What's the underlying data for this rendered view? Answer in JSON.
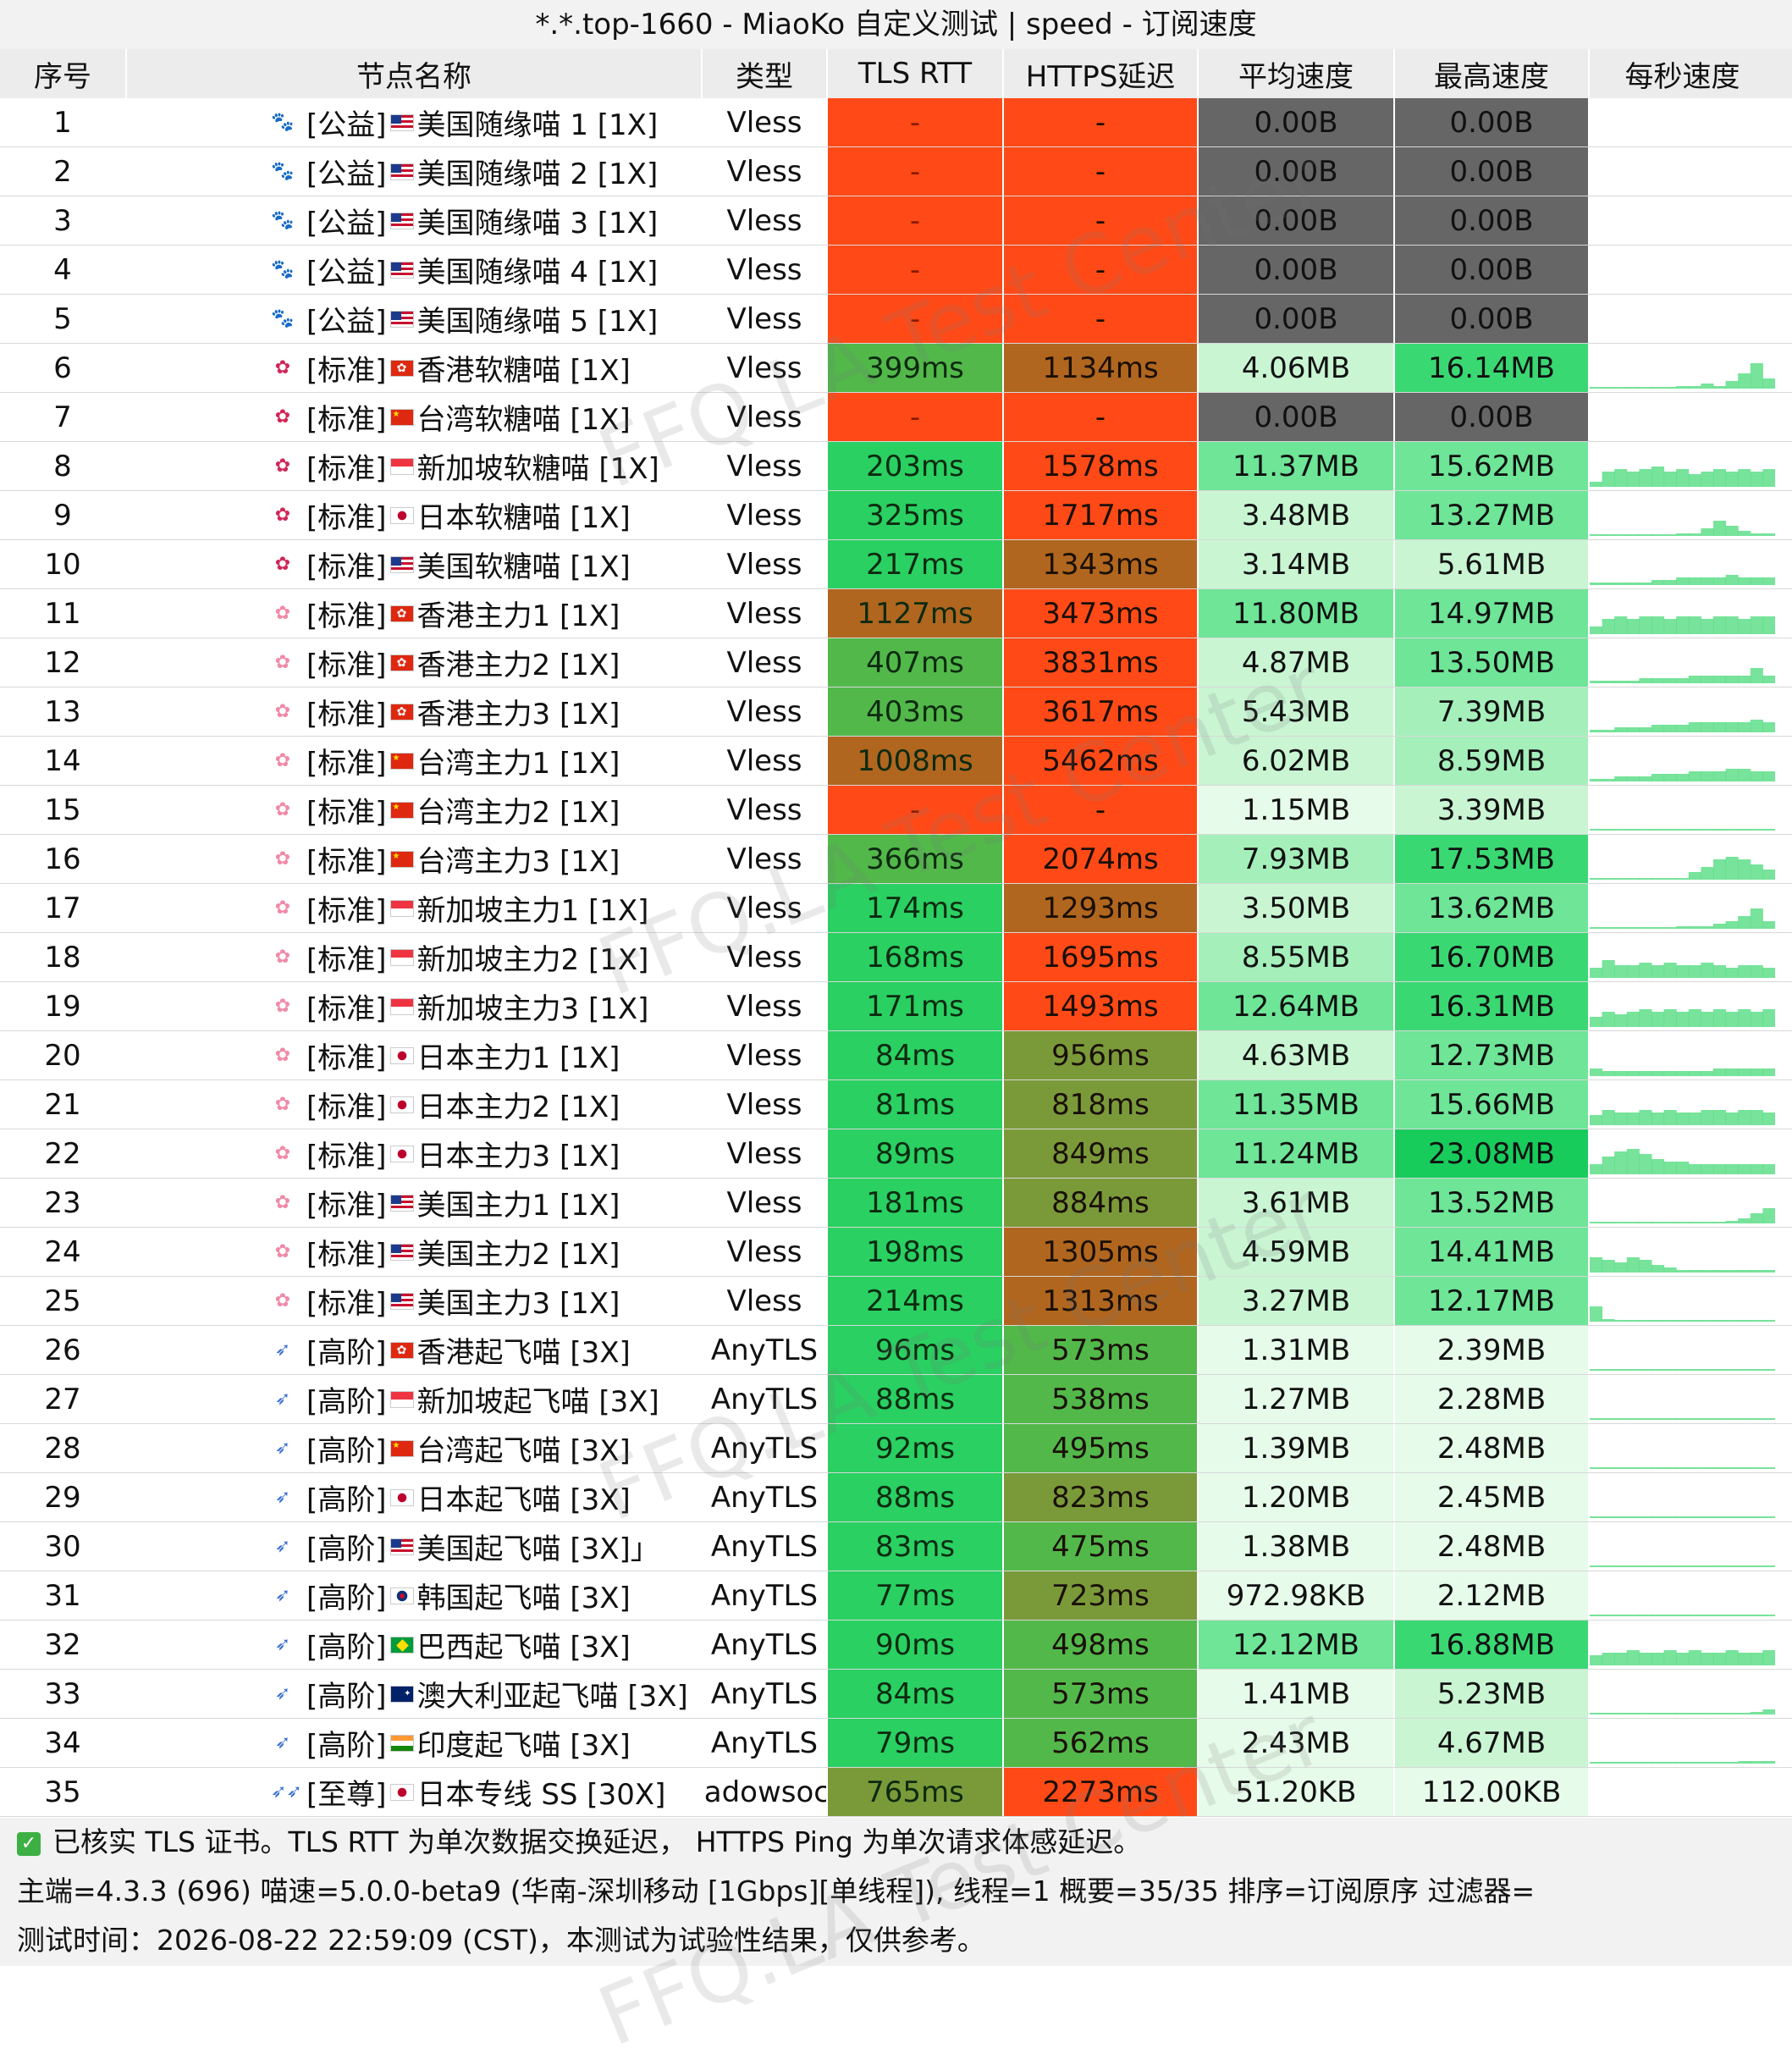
{
  "title": "*.*.top-1660 - MiaoKo 自定义测试 | speed - 订阅速度",
  "headers": {
    "idx": "序号",
    "name": "节点名称",
    "type": "类型",
    "tls": "TLS RTT",
    "https": "HTTPS延迟",
    "avg": "平均速度",
    "max": "最高速度",
    "spark": "每秒速度"
  },
  "watermark": "FFQ.LA Test Center",
  "colors": {
    "bad": "#ff4a17",
    "fast": "#2ad062",
    "ok": "#52b84a",
    "mid": "#7a9a3a",
    "slow": "#b0661f",
    "dead": "#666666"
  },
  "rows": [
    {
      "idx": "1",
      "icon": "paw",
      "name": "[公益]",
      "flag": "us",
      "label": "美国随缘喵 1 [1X]",
      "type": "Vless",
      "tls": "-",
      "https": "-",
      "avg": "0.00B",
      "max": "0.00B",
      "tlsc": "bad",
      "httpsc": "bad",
      "avgc": "dead",
      "maxc": "dead",
      "spark": []
    },
    {
      "idx": "2",
      "icon": "paw",
      "name": "[公益]",
      "flag": "us",
      "label": "美国随缘喵 2 [1X]",
      "type": "Vless",
      "tls": "-",
      "https": "-",
      "avg": "0.00B",
      "max": "0.00B",
      "tlsc": "bad",
      "httpsc": "bad",
      "avgc": "dead",
      "maxc": "dead",
      "spark": []
    },
    {
      "idx": "3",
      "icon": "paw",
      "name": "[公益]",
      "flag": "us",
      "label": "美国随缘喵 3 [1X]",
      "type": "Vless",
      "tls": "-",
      "https": "-",
      "avg": "0.00B",
      "max": "0.00B",
      "tlsc": "bad",
      "httpsc": "bad",
      "avgc": "dead",
      "maxc": "dead",
      "spark": []
    },
    {
      "idx": "4",
      "icon": "paw",
      "name": "[公益]",
      "flag": "us",
      "label": "美国随缘喵 4 [1X]",
      "type": "Vless",
      "tls": "-",
      "https": "-",
      "avg": "0.00B",
      "max": "0.00B",
      "tlsc": "bad",
      "httpsc": "bad",
      "avgc": "dead",
      "maxc": "dead",
      "spark": []
    },
    {
      "idx": "5",
      "icon": "paw",
      "name": "[公益]",
      "flag": "us",
      "label": "美国随缘喵 5 [1X]",
      "type": "Vless",
      "tls": "-",
      "https": "-",
      "avg": "0.00B",
      "max": "0.00B",
      "tlsc": "bad",
      "httpsc": "bad",
      "avgc": "dead",
      "maxc": "dead",
      "spark": []
    },
    {
      "idx": "6",
      "icon": "candy",
      "name": "[标准]",
      "flag": "hk",
      "label": "香港软糖喵 [1X]",
      "type": "Vless",
      "tls": "399ms",
      "https": "1134ms",
      "avg": "4.06MB",
      "max": "16.14MB",
      "tlsc": "ok",
      "httpsc": "slow",
      "avgc": "s1",
      "maxc": "s4",
      "spark": [
        0,
        0,
        0,
        0,
        0,
        0,
        0,
        1,
        1,
        2,
        1,
        3,
        6,
        10,
        4
      ]
    },
    {
      "idx": "7",
      "icon": "candy",
      "name": "[标准]",
      "flag": "cn",
      "label": "台湾软糖喵 [1X]",
      "type": "Vless",
      "tls": "-",
      "https": "-",
      "avg": "0.00B",
      "max": "0.00B",
      "tlsc": "bad",
      "httpsc": "bad",
      "avgc": "dead",
      "maxc": "dead",
      "spark": []
    },
    {
      "idx": "8",
      "icon": "candy",
      "name": "[标准]",
      "flag": "sg",
      "label": "新加坡软糖喵 [1X]",
      "type": "Vless",
      "tls": "203ms",
      "https": "1578ms",
      "avg": "11.37MB",
      "max": "15.62MB",
      "tlsc": "fast",
      "httpsc": "bad",
      "avgc": "s3",
      "maxc": "s3",
      "spark": [
        2,
        6,
        7,
        6,
        7,
        8,
        6,
        7,
        5,
        6,
        7,
        6,
        7,
        6,
        7
      ]
    },
    {
      "idx": "9",
      "icon": "candy",
      "name": "[标准]",
      "flag": "jp",
      "label": "日本软糖喵 [1X]",
      "type": "Vless",
      "tls": "325ms",
      "https": "1717ms",
      "avg": "3.48MB",
      "max": "13.27MB",
      "tlsc": "fast",
      "httpsc": "bad",
      "avgc": "s1",
      "maxc": "s3",
      "spark": [
        0,
        0,
        0,
        0,
        0,
        0,
        0,
        1,
        1,
        3,
        6,
        4,
        2,
        1,
        1
      ]
    },
    {
      "idx": "10",
      "icon": "candy",
      "name": "[标准]",
      "flag": "us",
      "label": "美国软糖喵 [1X]",
      "type": "Vless",
      "tls": "217ms",
      "https": "1343ms",
      "avg": "3.14MB",
      "max": "5.61MB",
      "tlsc": "fast",
      "httpsc": "slow",
      "avgc": "s1",
      "maxc": "s1",
      "spark": [
        1,
        1,
        1,
        1,
        1,
        2,
        2,
        3,
        3,
        3,
        3,
        4,
        3,
        3,
        3
      ]
    },
    {
      "idx": "11",
      "icon": "flower",
      "name": "[标准]",
      "flag": "hk",
      "label": "香港主力1 [1X]",
      "type": "Vless",
      "tls": "1127ms",
      "https": "3473ms",
      "avg": "11.80MB",
      "max": "14.97MB",
      "tlsc": "slow",
      "httpsc": "bad",
      "avgc": "s3",
      "maxc": "s3",
      "spark": [
        3,
        6,
        7,
        6,
        7,
        7,
        6,
        7,
        7,
        6,
        7,
        7,
        6,
        7,
        7
      ]
    },
    {
      "idx": "12",
      "icon": "flower",
      "name": "[标准]",
      "flag": "hk",
      "label": "香港主力2 [1X]",
      "type": "Vless",
      "tls": "407ms",
      "https": "3831ms",
      "avg": "4.87MB",
      "max": "13.50MB",
      "tlsc": "ok",
      "httpsc": "bad",
      "avgc": "s1",
      "maxc": "s3",
      "spark": [
        1,
        1,
        1,
        1,
        2,
        2,
        2,
        2,
        3,
        3,
        3,
        3,
        3,
        6,
        3
      ]
    },
    {
      "idx": "13",
      "icon": "flower",
      "name": "[标准]",
      "flag": "hk",
      "label": "香港主力3 [1X]",
      "type": "Vless",
      "tls": "403ms",
      "https": "3617ms",
      "avg": "5.43MB",
      "max": "7.39MB",
      "tlsc": "ok",
      "httpsc": "bad",
      "avgc": "s1",
      "maxc": "s2",
      "spark": [
        1,
        1,
        2,
        2,
        2,
        3,
        3,
        3,
        4,
        4,
        4,
        4,
        4,
        5,
        4
      ]
    },
    {
      "idx": "14",
      "icon": "flower",
      "name": "[标准]",
      "flag": "cn",
      "label": "台湾主力1 [1X]",
      "type": "Vless",
      "tls": "1008ms",
      "https": "5462ms",
      "avg": "6.02MB",
      "max": "8.59MB",
      "tlsc": "slow",
      "httpsc": "bad",
      "avgc": "s1",
      "maxc": "s2",
      "spark": [
        1,
        1,
        2,
        2,
        2,
        3,
        3,
        3,
        4,
        4,
        4,
        5,
        5,
        4,
        4
      ]
    },
    {
      "idx": "15",
      "icon": "flower",
      "name": "[标准]",
      "flag": "cn",
      "label": "台湾主力2 [1X]",
      "type": "Vless",
      "tls": "-",
      "https": "-",
      "avg": "1.15MB",
      "max": "3.39MB",
      "tlsc": "bad",
      "httpsc": "bad",
      "avgc": "s0",
      "maxc": "s1",
      "spark": [
        0,
        0,
        0,
        0,
        0,
        0,
        0,
        0,
        0,
        0,
        0,
        0,
        0,
        0,
        0
      ]
    },
    {
      "idx": "16",
      "icon": "flower",
      "name": "[标准]",
      "flag": "cn",
      "label": "台湾主力3 [1X]",
      "type": "Vless",
      "tls": "366ms",
      "https": "2074ms",
      "avg": "7.93MB",
      "max": "17.53MB",
      "tlsc": "ok",
      "httpsc": "bad",
      "avgc": "s2",
      "maxc": "s4",
      "spark": [
        0,
        0,
        0,
        0,
        0,
        0,
        0,
        0,
        3,
        5,
        8,
        9,
        8,
        6,
        4
      ]
    },
    {
      "idx": "17",
      "icon": "flower",
      "name": "[标准]",
      "flag": "sg",
      "label": "新加坡主力1  [1X]",
      "type": "Vless",
      "tls": "174ms",
      "https": "1293ms",
      "avg": "3.50MB",
      "max": "13.62MB",
      "tlsc": "fast",
      "httpsc": "slow",
      "avgc": "s1",
      "maxc": "s3",
      "spark": [
        0,
        0,
        0,
        0,
        0,
        0,
        0,
        1,
        1,
        1,
        2,
        3,
        5,
        8,
        3
      ]
    },
    {
      "idx": "18",
      "icon": "flower",
      "name": "[标准]",
      "flag": "sg",
      "label": "新加坡主力2 [1X]",
      "type": "Vless",
      "tls": "168ms",
      "https": "1695ms",
      "avg": "8.55MB",
      "max": "16.70MB",
      "tlsc": "fast",
      "httpsc": "bad",
      "avgc": "s2",
      "maxc": "s4",
      "spark": [
        4,
        7,
        5,
        5,
        6,
        5,
        6,
        5,
        5,
        6,
        5,
        4,
        5,
        5,
        4
      ]
    },
    {
      "idx": "19",
      "icon": "flower",
      "name": "[标准]",
      "flag": "sg",
      "label": "新加坡主力3 [1X]",
      "type": "Vless",
      "tls": "171ms",
      "https": "1493ms",
      "avg": "12.64MB",
      "max": "16.31MB",
      "tlsc": "fast",
      "httpsc": "bad",
      "avgc": "s3",
      "maxc": "s4",
      "spark": [
        4,
        6,
        5,
        6,
        7,
        6,
        7,
        6,
        7,
        6,
        7,
        6,
        7,
        6,
        7
      ]
    },
    {
      "idx": "20",
      "icon": "flower",
      "name": "[标准]",
      "flag": "jp",
      "label": "日本主力1 [1X]",
      "type": "Vless",
      "tls": "84ms",
      "https": "956ms",
      "avg": "4.63MB",
      "max": "12.73MB",
      "tlsc": "fast",
      "httpsc": "mid",
      "avgc": "s1",
      "maxc": "s3",
      "spark": [
        3,
        2,
        2,
        2,
        2,
        2,
        2,
        2,
        2,
        2,
        3,
        3,
        3,
        3,
        3
      ]
    },
    {
      "idx": "21",
      "icon": "flower",
      "name": "[标准]",
      "flag": "jp",
      "label": "日本主力2 [1X]",
      "type": "Vless",
      "tls": "81ms",
      "https": "818ms",
      "avg": "11.35MB",
      "max": "15.66MB",
      "tlsc": "fast",
      "httpsc": "mid",
      "avgc": "s3",
      "maxc": "s3",
      "spark": [
        4,
        6,
        5,
        5,
        6,
        5,
        6,
        5,
        5,
        6,
        6,
        5,
        6,
        6,
        5
      ]
    },
    {
      "idx": "22",
      "icon": "flower",
      "name": "[标准]",
      "flag": "jp",
      "label": "日本主力3 [1X]",
      "type": "Vless",
      "tls": "89ms",
      "https": "849ms",
      "avg": "11.24MB",
      "max": "23.08MB",
      "tlsc": "fast",
      "httpsc": "mid",
      "avgc": "s3",
      "maxc": "s5",
      "spark": [
        4,
        7,
        9,
        10,
        8,
        6,
        5,
        5,
        4,
        4,
        4,
        4,
        4,
        4,
        4
      ]
    },
    {
      "idx": "23",
      "icon": "flower",
      "name": "[标准]",
      "flag": "us",
      "label": "美国主力1 [1X]",
      "type": "Vless",
      "tls": "181ms",
      "https": "884ms",
      "avg": "3.61MB",
      "max": "13.52MB",
      "tlsc": "fast",
      "httpsc": "mid",
      "avgc": "s1",
      "maxc": "s3",
      "spark": [
        0,
        0,
        0,
        0,
        0,
        0,
        0,
        0,
        0,
        0,
        0,
        1,
        2,
        4,
        6
      ]
    },
    {
      "idx": "24",
      "icon": "flower",
      "name": "[标准]",
      "flag": "us",
      "label": "美国主力2 [1X]",
      "type": "Vless",
      "tls": "198ms",
      "https": "1305ms",
      "avg": "4.59MB",
      "max": "14.41MB",
      "tlsc": "fast",
      "httpsc": "slow",
      "avgc": "s1",
      "maxc": "s3",
      "spark": [
        6,
        5,
        4,
        6,
        5,
        3,
        2,
        1,
        1,
        1,
        1,
        1,
        1,
        1,
        1
      ]
    },
    {
      "idx": "25",
      "icon": "flower",
      "name": "[标准]",
      "flag": "us",
      "label": "美国主力3 [1X]",
      "type": "Vless",
      "tls": "214ms",
      "https": "1313ms",
      "avg": "3.27MB",
      "max": "12.17MB",
      "tlsc": "fast",
      "httpsc": "slow",
      "avgc": "s1",
      "maxc": "s3",
      "spark": [
        6,
        1,
        0,
        0,
        0,
        0,
        0,
        0,
        0,
        0,
        0,
        0,
        0,
        0,
        0
      ]
    },
    {
      "idx": "26",
      "icon": "rocket",
      "name": "[高阶]",
      "flag": "hk",
      "label": "香港起飞喵 [3X]",
      "type": "AnyTLS",
      "tls": "96ms",
      "https": "573ms",
      "avg": "1.31MB",
      "max": "2.39MB",
      "tlsc": "fast",
      "httpsc": "ok",
      "avgc": "s0",
      "maxc": "s0",
      "spark": [
        0,
        0,
        0,
        0,
        0,
        0,
        0,
        0,
        0,
        0,
        0,
        0,
        0,
        0,
        0
      ]
    },
    {
      "idx": "27",
      "icon": "rocket",
      "name": "[高阶]",
      "flag": "sg",
      "label": "新加坡起飞喵 [3X]",
      "type": "AnyTLS",
      "tls": "88ms",
      "https": "538ms",
      "avg": "1.27MB",
      "max": "2.28MB",
      "tlsc": "fast",
      "httpsc": "ok",
      "avgc": "s0",
      "maxc": "s0",
      "spark": [
        0,
        0,
        0,
        0,
        0,
        0,
        0,
        0,
        0,
        0,
        0,
        0,
        0,
        0,
        0
      ]
    },
    {
      "idx": "28",
      "icon": "rocket",
      "name": "[高阶]",
      "flag": "cn",
      "label": "台湾起飞喵 [3X]",
      "type": "AnyTLS",
      "tls": "92ms",
      "https": "495ms",
      "avg": "1.39MB",
      "max": "2.48MB",
      "tlsc": "fast",
      "httpsc": "ok",
      "avgc": "s0",
      "maxc": "s0",
      "spark": [
        0,
        0,
        0,
        0,
        0,
        0,
        0,
        0,
        0,
        0,
        0,
        0,
        0,
        0,
        0
      ]
    },
    {
      "idx": "29",
      "icon": "rocket",
      "name": "[高阶]",
      "flag": "jp",
      "label": "日本起飞喵 [3X]",
      "type": "AnyTLS",
      "tls": "88ms",
      "https": "823ms",
      "avg": "1.20MB",
      "max": "2.45MB",
      "tlsc": "fast",
      "httpsc": "mid",
      "avgc": "s0",
      "maxc": "s0",
      "spark": [
        0,
        0,
        0,
        0,
        0,
        0,
        0,
        0,
        0,
        0,
        0,
        0,
        0,
        0,
        0
      ]
    },
    {
      "idx": "30",
      "icon": "rocket",
      "name": "[高阶]",
      "flag": "us",
      "label": "美国起飞喵 [3X]」",
      "type": "AnyTLS",
      "tls": "83ms",
      "https": "475ms",
      "avg": "1.38MB",
      "max": "2.48MB",
      "tlsc": "fast",
      "httpsc": "ok",
      "avgc": "s0",
      "maxc": "s0",
      "spark": [
        0,
        0,
        0,
        0,
        0,
        0,
        0,
        0,
        0,
        0,
        0,
        0,
        0,
        0,
        0
      ]
    },
    {
      "idx": "31",
      "icon": "rocket",
      "name": "[高阶]",
      "flag": "kr",
      "label": "韩国起飞喵 [3X]",
      "type": "AnyTLS",
      "tls": "77ms",
      "https": "723ms",
      "avg": "972.98KB",
      "max": "2.12MB",
      "tlsc": "fast",
      "httpsc": "mid",
      "avgc": "s0",
      "maxc": "s0",
      "spark": [
        0,
        0,
        0,
        0,
        0,
        0,
        0,
        0,
        0,
        0,
        0,
        0,
        0,
        0,
        0
      ]
    },
    {
      "idx": "32",
      "icon": "rocket",
      "name": "[高阶]",
      "flag": "br",
      "label": "巴西起飞喵 [3X]",
      "type": "AnyTLS",
      "tls": "90ms",
      "https": "498ms",
      "avg": "12.12MB",
      "max": "16.88MB",
      "tlsc": "fast",
      "httpsc": "ok",
      "avgc": "s3",
      "maxc": "s4",
      "spark": [
        4,
        5,
        5,
        6,
        5,
        5,
        6,
        5,
        6,
        5,
        5,
        6,
        5,
        5,
        6
      ]
    },
    {
      "idx": "33",
      "icon": "rocket",
      "name": "[高阶]",
      "flag": "au",
      "label": "澳大利亚起飞喵 [3X]",
      "type": "AnyTLS",
      "tls": "84ms",
      "https": "573ms",
      "avg": "1.41MB",
      "max": "5.23MB",
      "tlsc": "fast",
      "httpsc": "ok",
      "avgc": "s0",
      "maxc": "s1",
      "spark": [
        0,
        0,
        0,
        0,
        0,
        0,
        0,
        0,
        0,
        0,
        0,
        0,
        0,
        1,
        2
      ]
    },
    {
      "idx": "34",
      "icon": "rocket",
      "name": "[高阶]",
      "flag": "in",
      "label": "印度起飞喵 [3X]",
      "type": "AnyTLS",
      "tls": "79ms",
      "https": "562ms",
      "avg": "2.43MB",
      "max": "4.67MB",
      "tlsc": "fast",
      "httpsc": "ok",
      "avgc": "s0",
      "maxc": "s1",
      "spark": [
        0,
        0,
        0,
        0,
        0,
        0,
        0,
        0,
        0,
        0,
        0,
        0,
        1,
        1,
        1
      ]
    },
    {
      "idx": "35",
      "icon": "rocket2",
      "name": "[至尊]",
      "flag": "jp",
      "label": "日本专线 SS [30X]",
      "type": "Shadowsocks",
      "tls": "765ms",
      "https": "2273ms",
      "avg": "51.20KB",
      "max": "112.00KB",
      "tlsc": "mid",
      "httpsc": "bad",
      "avgc": "s0",
      "maxc": "s0",
      "spark": []
    }
  ],
  "footer": {
    "line1": "已核实 TLS 证书。TLS RTT 为单次数据交换延迟， HTTPS Ping 为单次请求体感延迟。",
    "line2": "主端=4.3.3 (696) 喵速=5.0.0-beta9 (华南-深圳移动 [1Gbps][单线程]), 线程=1 概要=35/35 排序=订阅原序 过滤器=",
    "line3": "测试时间：2026-08-22 22:59:09 (CST)，本测试为试验性结果，仅供参考。"
  }
}
